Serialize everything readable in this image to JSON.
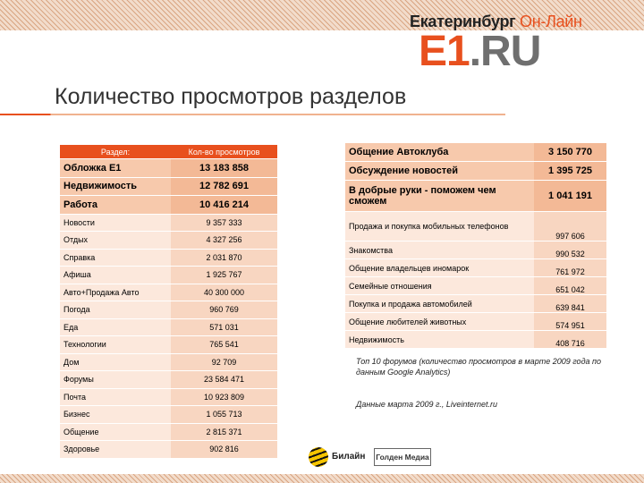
{
  "logo": {
    "city": "Екатеринбург",
    "online": "Он-Лайн",
    "brand_main": "E1",
    "brand_suffix": ".RU",
    "colors": {
      "accent": "#e8501e",
      "gray": "#6f6f6f"
    }
  },
  "title": "Количество просмотров разделов",
  "left_table": {
    "headers": [
      "Раздел:",
      "Кол-во просмотров"
    ],
    "big_rows": [
      {
        "section": "Обложка E1",
        "views": "13 183 858"
      },
      {
        "section": "Недвижимость",
        "views": "12 782 691"
      },
      {
        "section": "Работа",
        "views": "10 416 214"
      }
    ],
    "small_rows": [
      {
        "section": "Новости",
        "views": "9 357 333"
      },
      {
        "section": "Отдых",
        "views": "4 327 256"
      },
      {
        "section": "Справка",
        "views": "2 031 870"
      },
      {
        "section": "Афиша",
        "views": "1 925 767"
      },
      {
        "section": "Авто+Продажа Авто",
        "views": "40 300 000"
      },
      {
        "section": "Погода",
        "views": "960 769"
      },
      {
        "section": "Еда",
        "views": "571 031"
      },
      {
        "section": "Технологии",
        "views": "765 541"
      },
      {
        "section": "Дом",
        "views": "92 709"
      },
      {
        "section": "Форумы",
        "views": "23 584 471"
      },
      {
        "section": "Почта",
        "views": "10 923 809"
      },
      {
        "section": "Бизнес",
        "views": "1 055 713"
      },
      {
        "section": "Общение",
        "views": "2 815 371"
      },
      {
        "section": "Здоровье",
        "views": "902 816"
      }
    ]
  },
  "right_table": {
    "big_rows": [
      {
        "forum": "Общение Автоклуба",
        "views": "3 150 770"
      },
      {
        "forum": "Обсуждение новостей",
        "views": "1 395 725"
      },
      {
        "forum": "В добрые руки - поможем чем сможем",
        "views": "1 041 191"
      }
    ],
    "small_rows": [
      {
        "forum": "Продажа и покупка мобильных телефонов",
        "views": "997 606"
      },
      {
        "forum": "Знакомства",
        "views": "990 532"
      },
      {
        "forum": "Общение владельцев иномарок",
        "views": "761 972"
      },
      {
        "forum": "Семейные отношения",
        "views": "651 042"
      },
      {
        "forum": "Покупка и продажа автомобилей",
        "views": "639 841"
      },
      {
        "forum": "Общение любителей животных",
        "views": "574 951"
      },
      {
        "forum": "Недвижимость",
        "views": "408 716"
      }
    ]
  },
  "notes": {
    "forums_note": "Топ 10 форумов (количество просмотров в марте 2009 года по данным Google Analytics)",
    "data_note": "Данные марта 2009 г., Liveinternet.ru"
  },
  "footer": {
    "beeline": "Билайн",
    "golden": "Голден Медиа"
  }
}
